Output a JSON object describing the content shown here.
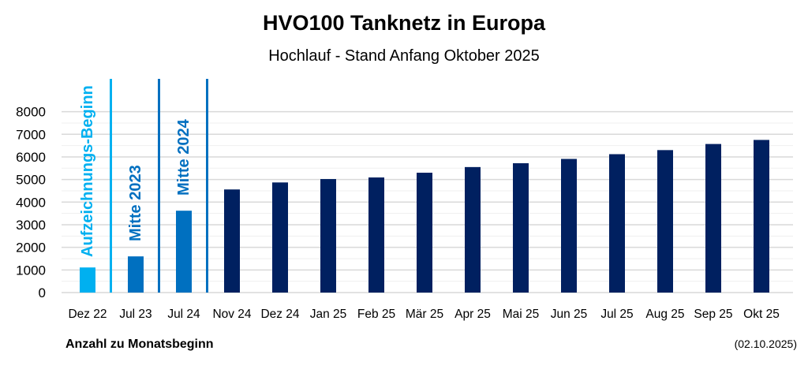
{
  "chart_data": {
    "type": "bar",
    "title": "HVO100 Tanknetz in Europa",
    "subtitle": "Hochlauf - Stand Anfang Oktober 2025",
    "xlabel": "Anzahl zu Monatsbeginn",
    "ylabel": "",
    "date_note": "(02.10.2025)",
    "ylim": [
      0,
      8000
    ],
    "yticks": [
      0,
      1000,
      2000,
      3000,
      4000,
      5000,
      6000,
      7000,
      8000
    ],
    "grid": true,
    "categories": [
      "Dez 22",
      "Jul 23",
      "Jul 24",
      "Nov 24",
      "Dez 24",
      "Jan 25",
      "Feb 25",
      "Mär 25",
      "Apr 25",
      "Mai 25",
      "Jun 25",
      "Jul 25",
      "Aug 25",
      "Sep 25",
      "Okt 25"
    ],
    "values": [
      1110,
      1600,
      3620,
      4560,
      4870,
      5020,
      5090,
      5300,
      5550,
      5720,
      5910,
      6120,
      6300,
      6570,
      6750
    ],
    "bar_colors": [
      "#00b0f0",
      "#0070c0",
      "#0070c0",
      "#002060",
      "#002060",
      "#002060",
      "#002060",
      "#002060",
      "#002060",
      "#002060",
      "#002060",
      "#002060",
      "#002060",
      "#002060",
      "#002060"
    ],
    "annotations": [
      {
        "text": "Aufzeichnungs-Beginn",
        "after_category": 0,
        "color": "#00b0f0"
      },
      {
        "text": "Mitte 2023",
        "after_category": 1,
        "color": "#0070c0"
      },
      {
        "text": "Mitte 2024",
        "after_category": 2,
        "color": "#0070c0"
      }
    ]
  }
}
